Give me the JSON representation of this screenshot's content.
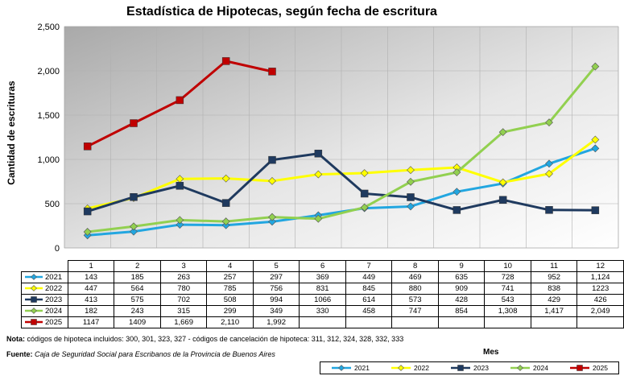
{
  "title": "Estadística de Hipotecas, según fecha de escritura",
  "footer": {
    "note_label": "Nota:",
    "note_text": "códigos de hipoteca incluidos: 300, 301, 323, 327 - códigos de cancelación de hipoteca: 311, 312, 324, 328, 332, 333",
    "source_label": "Fuente:",
    "source_text": "Caja de Seguridad Social para Escribanos de la Provincia de Buenos Aires"
  },
  "chart_data": {
    "type": "line",
    "title": "Estadística de Hipotecas, según fecha de escritura",
    "xlabel": "Mes",
    "ylabel": "Cantidad de escrituras",
    "ylim": [
      0,
      2500
    ],
    "y_ticks": [
      "0",
      "500",
      "1,000",
      "1,500",
      "2,000",
      "2,500"
    ],
    "y_tick_values": [
      0,
      500,
      1000,
      1500,
      2000,
      2500
    ],
    "categories": [
      "1",
      "2",
      "3",
      "4",
      "5",
      "6",
      "7",
      "8",
      "9",
      "10",
      "11",
      "12"
    ],
    "grid": true,
    "legend_position": "bottom-right",
    "series": [
      {
        "name": "2021",
        "color": "#22a6e0",
        "marker": "diamond",
        "values": [
          143,
          185,
          263,
          257,
          297,
          369,
          449,
          469,
          635,
          728,
          952,
          1124
        ],
        "labels": [
          "143",
          "185",
          "263",
          "257",
          "297",
          "369",
          "449",
          "469",
          "635",
          "728",
          "952",
          "1,124"
        ]
      },
      {
        "name": "2022",
        "color": "#ffff00",
        "marker": "diamond",
        "values": [
          447,
          564,
          780,
          785,
          756,
          831,
          845,
          880,
          909,
          741,
          838,
          1223
        ],
        "labels": [
          "447",
          "564",
          "780",
          "785",
          "756",
          "831",
          "845",
          "880",
          "909",
          "741",
          "838",
          "1223"
        ]
      },
      {
        "name": "2023",
        "color": "#1f3a5f",
        "marker": "square",
        "values": [
          413,
          575,
          702,
          508,
          994,
          1066,
          614,
          573,
          428,
          543,
          429,
          426
        ],
        "labels": [
          "413",
          "575",
          "702",
          "508",
          "994",
          "1066",
          "614",
          "573",
          "428",
          "543",
          "429",
          "426"
        ]
      },
      {
        "name": "2024",
        "color": "#92d050",
        "marker": "diamond",
        "values": [
          182,
          243,
          315,
          299,
          349,
          330,
          458,
          747,
          854,
          1308,
          1417,
          2049
        ],
        "labels": [
          "182",
          "243",
          "315",
          "299",
          "349",
          "330",
          "458",
          "747",
          "854",
          "1,308",
          "1,417",
          "2,049"
        ]
      },
      {
        "name": "2025",
        "color": "#c00000",
        "marker": "square",
        "values": [
          1147,
          1409,
          1669,
          2110,
          1992,
          null,
          null,
          null,
          null,
          null,
          null,
          null
        ],
        "labels": [
          "1147",
          "1409",
          "1,669",
          "2,110",
          "1,992",
          "",
          "",
          "",
          "",
          "",
          "",
          ""
        ]
      }
    ]
  }
}
